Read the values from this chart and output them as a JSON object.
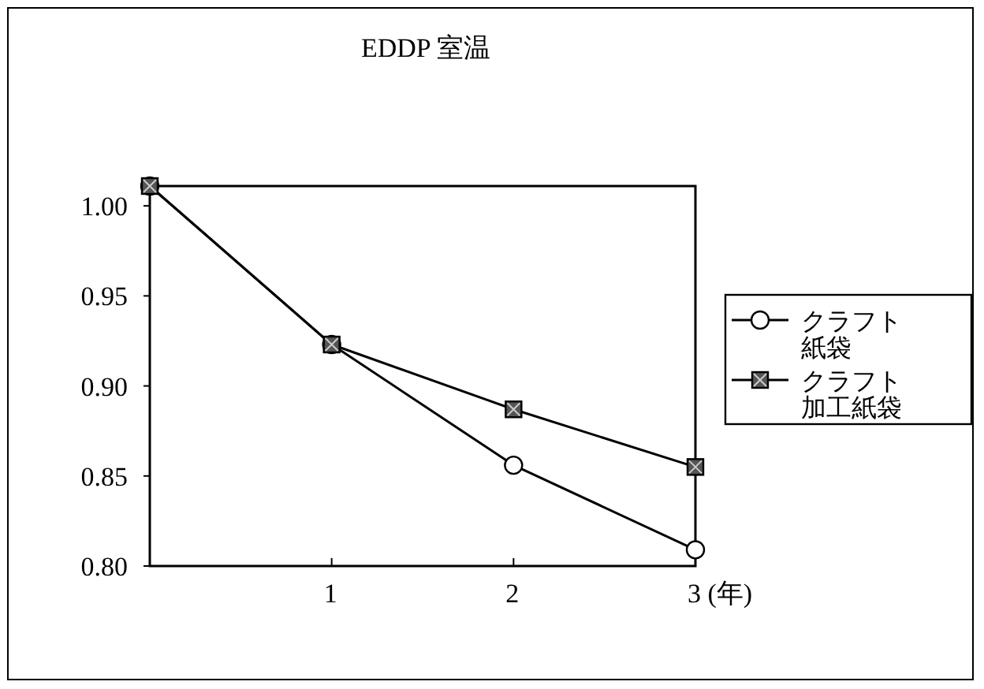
{
  "chart_data": {
    "type": "line",
    "title": "EDDP 室温",
    "x": [
      0,
      1,
      2,
      3
    ],
    "series": [
      {
        "name": "クラフト紙袋",
        "color": "#000000",
        "marker": "circle",
        "values": [
          1.011,
          0.923,
          0.856,
          0.809
        ]
      },
      {
        "name": "クラフト加工紙袋",
        "color": "#000000",
        "marker": "square",
        "values": [
          1.011,
          0.923,
          0.887,
          0.855
        ]
      }
    ],
    "xlim": [
      0,
      3
    ],
    "xticks": [
      {
        "value": 1,
        "label": "1"
      },
      {
        "value": 2,
        "label": "2"
      },
      {
        "value": 3,
        "label": "3 (年)"
      }
    ],
    "ylim": [
      0.8,
      1.011
    ],
    "yticks": [
      {
        "value": 0.8,
        "label": "0.80"
      },
      {
        "value": 0.85,
        "label": "0.85"
      },
      {
        "value": 0.9,
        "label": "0.90"
      },
      {
        "value": 0.95,
        "label": "0.95"
      },
      {
        "value": 1.0,
        "label": "1.00"
      }
    ],
    "grid": false,
    "legend": "right",
    "line_style": "solid"
  }
}
